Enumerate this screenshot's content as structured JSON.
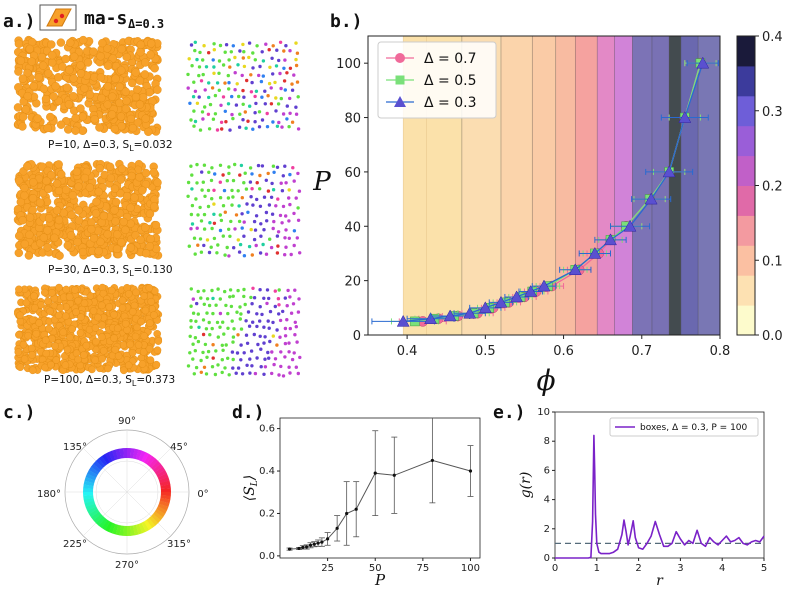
{
  "panel_labels": {
    "a": "a.)",
    "b": "b.)",
    "c": "c.)",
    "d": "d.)",
    "e": "e.)"
  },
  "panel_a": {
    "title_text": "ma-s",
    "title_sub": "Δ=0.3",
    "captions": [
      {
        "pre": "P=10, Δ=0.3, S",
        "sub": "L",
        "post": "=0.032"
      },
      {
        "pre": "P=30, Δ=0.3, S",
        "sub": "L",
        "post": "=0.130"
      },
      {
        "pre": "P=100, Δ=0.3, S",
        "sub": "L",
        "post": "=0.373"
      }
    ],
    "particle_color": "#f7a12a",
    "particle_edge": "#e08a10"
  },
  "chart_data": [
    {
      "id": "b",
      "type": "scatter",
      "xlabel": "ϕ",
      "ylabel": "P",
      "xlim": [
        0.35,
        0.8
      ],
      "ylim": [
        0,
        110
      ],
      "xticks": [
        0.4,
        0.5,
        0.6,
        0.7,
        0.8
      ],
      "yticks": [
        0,
        20,
        40,
        60,
        80,
        100
      ],
      "colorbar": {
        "ticks": [
          0.0,
          0.1,
          0.2,
          0.3,
          0.4
        ],
        "tick_labels": [
          "0.0",
          "0.1",
          "0.2",
          "0.3",
          "0.4"
        ],
        "levels": [
          "#fdfbcc",
          "#fde1b2",
          "#fbc0a2",
          "#f39aa0",
          "#e06aa8",
          "#c160c8",
          "#9a5ed8",
          "#6e5ed8",
          "#3c3b9c",
          "#1a1a3a"
        ]
      },
      "background_bands": [
        {
          "x0": 0.395,
          "x1": 0.425,
          "color": "#fbe0a8"
        },
        {
          "x0": 0.425,
          "x1": 0.47,
          "color": "#fbe0a8"
        },
        {
          "x0": 0.47,
          "x1": 0.52,
          "color": "#fbdcb0"
        },
        {
          "x0": 0.52,
          "x1": 0.56,
          "color": "#fbd2aa"
        },
        {
          "x0": 0.56,
          "x1": 0.59,
          "color": "#f9c8a4"
        },
        {
          "x0": 0.59,
          "x1": 0.615,
          "color": "#f7b69e"
        },
        {
          "x0": 0.615,
          "x1": 0.643,
          "color": "#f49a9c"
        },
        {
          "x0": 0.643,
          "x1": 0.665,
          "color": "#e07ec8"
        },
        {
          "x0": 0.665,
          "x1": 0.688,
          "color": "#cc78dc"
        },
        {
          "x0": 0.688,
          "x1": 0.713,
          "color": "#6e66b6"
        },
        {
          "x0": 0.713,
          "x1": 0.735,
          "color": "#6a64b4"
        },
        {
          "x0": 0.735,
          "x1": 0.75,
          "color": "#2f3a44"
        },
        {
          "x0": 0.75,
          "x1": 0.772,
          "color": "#5a5aae"
        },
        {
          "x0": 0.772,
          "x1": 0.8,
          "color": "#6a6ab4"
        }
      ],
      "series": [
        {
          "name": "Δ = 0.7",
          "marker": "circle",
          "color": "#f06a9a",
          "line": "#f06a9a",
          "x": [
            0.42,
            0.44,
            0.465,
            0.49,
            0.51,
            0.53,
            0.55,
            0.565,
            0.585,
            0.62,
            0.645,
            0.66,
            0.68,
            0.71,
            0.735,
            0.755,
            0.775
          ],
          "y": [
            5,
            6,
            7,
            8,
            10,
            12,
            14,
            16,
            18,
            24,
            30,
            35,
            40,
            50,
            60,
            80,
            100
          ],
          "xerr": [
            0.03,
            0.025,
            0.02,
            0.02,
            0.015,
            0.015,
            0.015,
            0.015,
            0.015,
            0.015,
            0.015,
            0.015,
            0.02,
            0.02,
            0.02,
            0.02,
            0.02
          ]
        },
        {
          "name": "Δ = 0.5",
          "marker": "square",
          "color": "#7ae07a",
          "line": "#7ae07a",
          "x": [
            0.41,
            0.435,
            0.46,
            0.485,
            0.505,
            0.525,
            0.545,
            0.56,
            0.58,
            0.615,
            0.64,
            0.66,
            0.68,
            0.71,
            0.735,
            0.755,
            0.775
          ],
          "y": [
            5,
            6,
            7,
            8,
            10,
            12,
            14,
            16,
            18,
            24,
            30,
            35,
            40,
            50,
            60,
            80,
            100
          ],
          "xerr": [
            0.03,
            0.025,
            0.02,
            0.02,
            0.015,
            0.015,
            0.015,
            0.015,
            0.015,
            0.015,
            0.015,
            0.015,
            0.02,
            0.02,
            0.02,
            0.02,
            0.02
          ]
        },
        {
          "name": "Δ = 0.3",
          "marker": "triangle",
          "color": "#5a50d0",
          "line": "#2a6ad0",
          "x": [
            0.395,
            0.43,
            0.455,
            0.48,
            0.5,
            0.52,
            0.54,
            0.558,
            0.575,
            0.615,
            0.64,
            0.66,
            0.685,
            0.712,
            0.735,
            0.755,
            0.778
          ],
          "y": [
            5,
            6,
            7,
            8,
            10,
            12,
            14,
            16,
            18,
            24,
            30,
            35,
            40,
            50,
            60,
            80,
            100
          ],
          "xerr": [
            0.04,
            0.03,
            0.025,
            0.02,
            0.02,
            0.015,
            0.015,
            0.015,
            0.015,
            0.02,
            0.02,
            0.02,
            0.025,
            0.025,
            0.03,
            0.03,
            0.02
          ]
        }
      ]
    },
    {
      "id": "c",
      "type": "polar-colorwheel",
      "angle_labels": [
        "0°",
        "45°",
        "90°",
        "135°",
        "180°",
        "225°",
        "270°",
        "315°"
      ],
      "angles": [
        0,
        45,
        90,
        135,
        180,
        225,
        270,
        315
      ]
    },
    {
      "id": "d",
      "type": "line",
      "xlabel": "P",
      "ylabel": "⟨S",
      "ylabel_sub": "L",
      "ylabel_end": "⟩",
      "xlim": [
        0,
        105
      ],
      "ylim": [
        -0.01,
        0.65
      ],
      "xticks": [
        25,
        50,
        75,
        100
      ],
      "yticks": [
        0.0,
        0.2,
        0.4,
        0.6
      ],
      "ytick_labels": [
        "0.0",
        "0.2",
        "0.4",
        "0.6"
      ],
      "x": [
        5,
        10,
        12,
        14,
        16,
        18,
        20,
        22,
        25,
        30,
        35,
        40,
        50,
        60,
        80,
        100
      ],
      "y": [
        0.032,
        0.035,
        0.04,
        0.042,
        0.05,
        0.055,
        0.06,
        0.065,
        0.08,
        0.13,
        0.2,
        0.22,
        0.39,
        0.38,
        0.45,
        0.4
      ],
      "yerr": [
        0.005,
        0.005,
        0.008,
        0.01,
        0.012,
        0.012,
        0.015,
        0.02,
        0.03,
        0.06,
        0.15,
        0.13,
        0.2,
        0.18,
        0.2,
        0.12
      ]
    },
    {
      "id": "e",
      "type": "line",
      "xlabel": "r",
      "ylabel": "g(r)",
      "xlim": [
        0,
        5
      ],
      "ylim": [
        0,
        10
      ],
      "xticks": [
        0,
        1,
        2,
        3,
        4,
        5
      ],
      "yticks": [
        0,
        2,
        4,
        6,
        8,
        10
      ],
      "legend": "boxes, Δ = 0.3, P = 100",
      "reference_line_y": 1.0,
      "series_color": "#7a22c8",
      "x": [
        0.0,
        0.8,
        0.86,
        0.9,
        0.93,
        0.95,
        0.97,
        1.0,
        1.05,
        1.1,
        1.2,
        1.3,
        1.4,
        1.5,
        1.6,
        1.65,
        1.7,
        1.75,
        1.8,
        1.87,
        1.92,
        2.0,
        2.1,
        2.2,
        2.3,
        2.4,
        2.5,
        2.6,
        2.7,
        2.8,
        2.9,
        3.0,
        3.1,
        3.2,
        3.3,
        3.4,
        3.5,
        3.6,
        3.7,
        3.8,
        3.9,
        4.0,
        4.1,
        4.2,
        4.3,
        4.4,
        4.5,
        4.6,
        4.7,
        4.8,
        4.9,
        5.0
      ],
      "y": [
        0.0,
        0.0,
        0.05,
        2.5,
        8.4,
        6.0,
        3.0,
        1.0,
        0.4,
        0.3,
        0.3,
        0.3,
        0.4,
        0.6,
        1.6,
        2.6,
        1.8,
        0.9,
        1.5,
        2.55,
        1.4,
        0.7,
        0.6,
        1.0,
        1.5,
        2.5,
        1.6,
        0.8,
        0.8,
        1.0,
        1.8,
        1.3,
        0.9,
        1.2,
        1.0,
        1.9,
        1.0,
        0.8,
        1.4,
        1.1,
        0.9,
        1.2,
        1.5,
        1.1,
        1.2,
        1.4,
        1.0,
        0.9,
        1.1,
        1.2,
        1.1,
        1.5
      ]
    }
  ]
}
